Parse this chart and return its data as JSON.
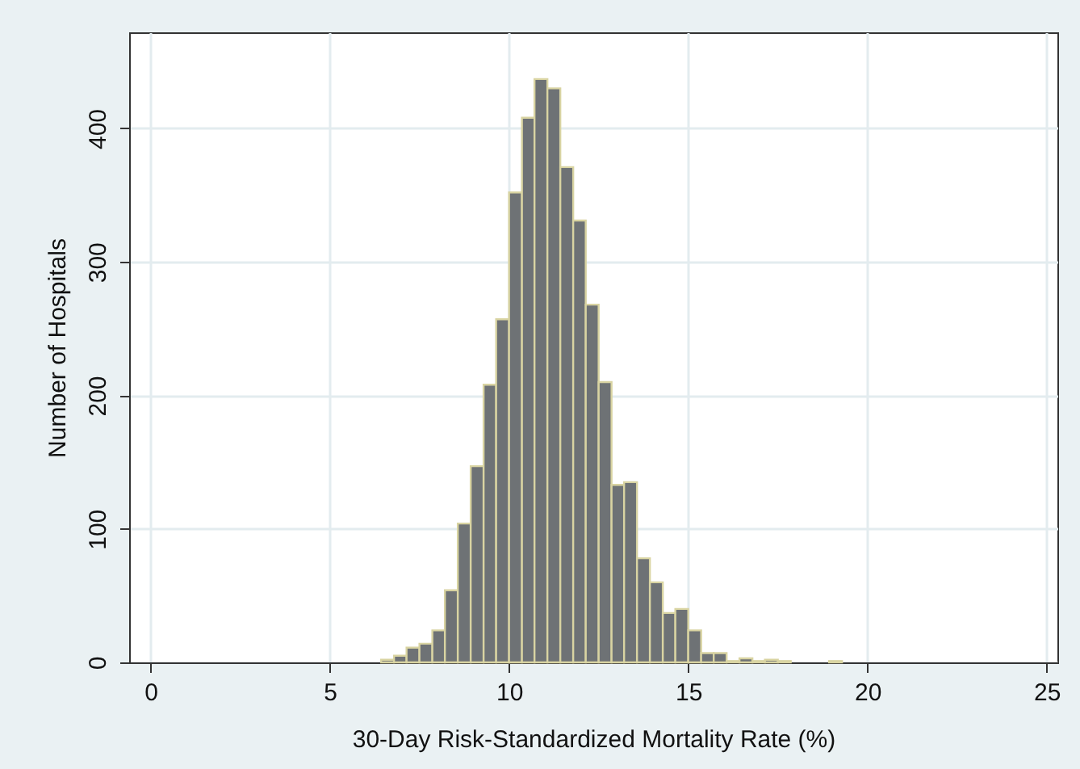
{
  "chart_data": {
    "type": "histogram",
    "xlabel": "30-Day Risk-Standardized Mortality Rate (%)",
    "ylabel": "Number of Hospitals",
    "bins": [
      6.43,
      6.79,
      7.14,
      7.5,
      7.86,
      8.21,
      8.57,
      8.93,
      9.29,
      9.64,
      10,
      10.36,
      10.71,
      11.07,
      11.43,
      11.79,
      12.14,
      12.5,
      12.86,
      13.21,
      13.57,
      13.93,
      14.29,
      14.64,
      15,
      15.36,
      15.71,
      16.07,
      16.43,
      16.79,
      17.14,
      17.5,
      17.86,
      18.21,
      18.57,
      18.93,
      19.29
    ],
    "values": [
      2,
      5,
      11,
      14,
      24,
      54,
      104,
      147,
      208,
      257,
      352,
      408,
      437,
      430,
      371,
      331,
      268,
      210,
      133,
      135,
      78,
      60,
      37,
      40,
      24,
      7,
      7,
      1,
      3,
      1,
      2,
      1,
      0,
      0,
      0,
      1
    ],
    "color": "#6e7275",
    "xlim": [
      -0.6,
      25.3
    ],
    "xticks": [
      0,
      5,
      10,
      15,
      20,
      25
    ],
    "ylim": [
      0,
      472
    ],
    "yticks": [
      0,
      100,
      200,
      300,
      400
    ],
    "grid": true
  }
}
